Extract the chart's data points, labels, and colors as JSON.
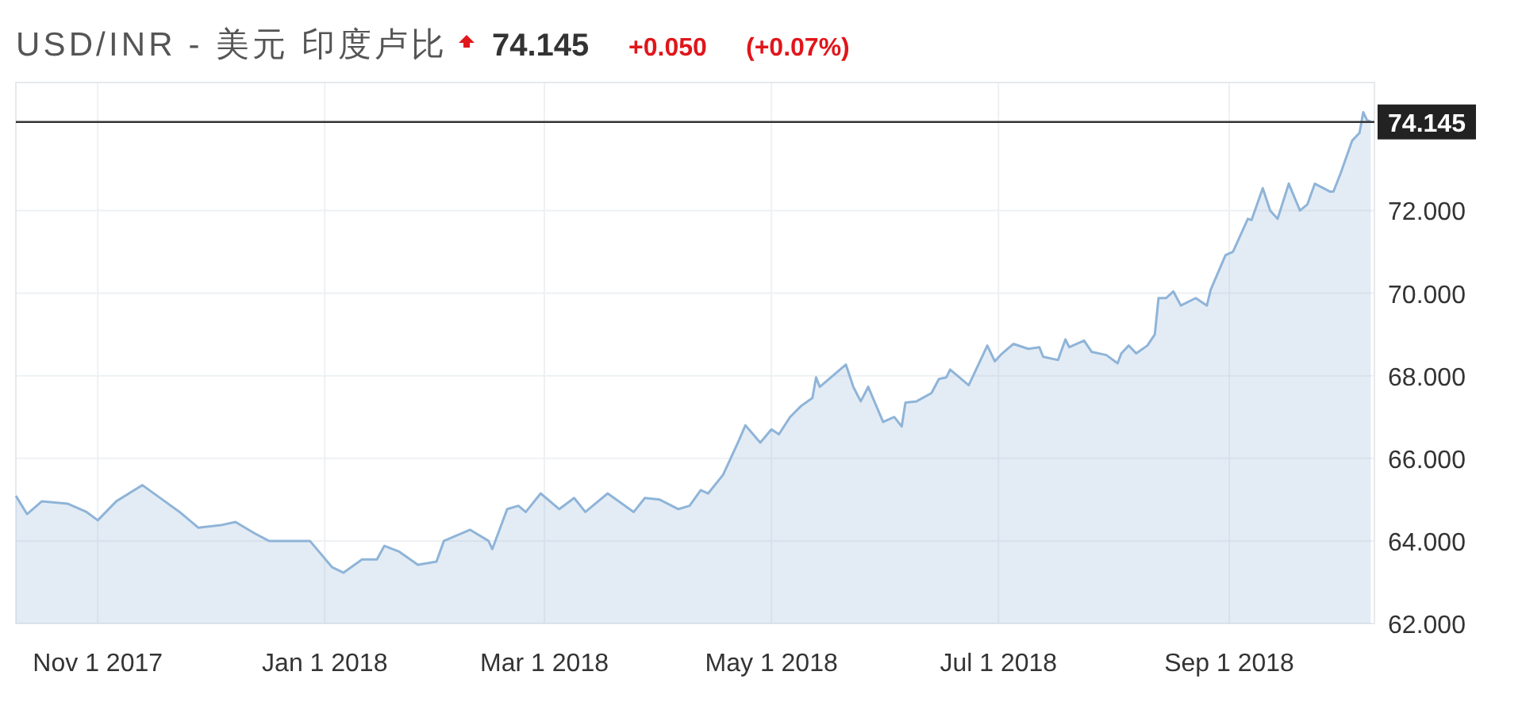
{
  "chart_data": {
    "type": "area",
    "title": "USD/INR - 美元 印度卢比",
    "annotations": [
      "74.145",
      "+0.050",
      "(+0.07%)"
    ],
    "xlim": [
      "2017-10-10",
      "2018-10-10"
    ],
    "xticks": [
      {
        "value": "2017-11-01",
        "label": "Nov 1 2017"
      },
      {
        "value": "2018-01-01",
        "label": "Jan 1 2018"
      },
      {
        "value": "2018-03-01",
        "label": "Mar 1 2018"
      },
      {
        "value": "2018-05-01",
        "label": "May 1 2018"
      },
      {
        "value": "2018-07-01",
        "label": "Jul 1 2018"
      },
      {
        "value": "2018-09-01",
        "label": "Sep 1 2018"
      }
    ],
    "ylim": [
      62,
      75.1
    ],
    "yticks": [
      {
        "value": 62,
        "label": "62.000"
      },
      {
        "value": 64,
        "label": "64.000"
      },
      {
        "value": 66,
        "label": "66.000"
      },
      {
        "value": 68,
        "label": "68.000"
      },
      {
        "value": 70,
        "label": "70.000"
      },
      {
        "value": 72,
        "label": "72.000"
      }
    ],
    "grid": true,
    "ref_lines": [
      {
        "axis": "y",
        "value": 74.145,
        "label": "74.145",
        "color": "#333333"
      }
    ],
    "x": [
      "2017-10-10",
      "2017-10-13",
      "2017-10-17",
      "2017-10-24",
      "2017-10-29",
      "2017-11-01",
      "2017-11-06",
      "2017-11-13",
      "2017-11-17",
      "2017-11-23",
      "2017-11-28",
      "2017-12-04",
      "2017-12-08",
      "2017-12-13",
      "2017-12-17",
      "2017-12-22",
      "2017-12-28",
      "2018-01-03",
      "2018-01-06",
      "2018-01-11",
      "2018-01-15",
      "2018-01-17",
      "2018-01-21",
      "2018-01-26",
      "2018-01-31",
      "2018-02-02",
      "2018-02-09",
      "2018-02-14",
      "2018-02-15",
      "2018-02-19",
      "2018-02-22",
      "2018-02-24",
      "2018-02-28",
      "2018-03-05",
      "2018-03-09",
      "2018-03-12",
      "2018-03-18",
      "2018-03-25",
      "2018-03-28",
      "2018-04-01",
      "2018-04-06",
      "2018-04-09",
      "2018-04-12",
      "2018-04-14",
      "2018-04-18",
      "2018-04-22",
      "2018-04-24",
      "2018-04-28",
      "2018-05-01",
      "2018-05-03",
      "2018-05-06",
      "2018-05-09",
      "2018-05-12",
      "2018-05-13",
      "2018-05-14",
      "2018-05-18",
      "2018-05-21",
      "2018-05-23",
      "2018-05-25",
      "2018-05-27",
      "2018-05-31",
      "2018-06-03",
      "2018-06-05",
      "2018-06-06",
      "2018-06-09",
      "2018-06-13",
      "2018-06-15",
      "2018-06-17",
      "2018-06-18",
      "2018-06-23",
      "2018-06-28",
      "2018-06-30",
      "2018-07-02",
      "2018-07-05",
      "2018-07-09",
      "2018-07-12",
      "2018-07-13",
      "2018-07-17",
      "2018-07-19",
      "2018-07-20",
      "2018-07-24",
      "2018-07-26",
      "2018-07-30",
      "2018-08-02",
      "2018-08-03",
      "2018-08-05",
      "2018-08-07",
      "2018-08-10",
      "2018-08-12",
      "2018-08-13",
      "2018-08-15",
      "2018-08-17",
      "2018-08-19",
      "2018-08-23",
      "2018-08-26",
      "2018-08-27",
      "2018-08-31",
      "2018-09-02",
      "2018-09-06",
      "2018-09-07",
      "2018-09-10",
      "2018-09-12",
      "2018-09-14",
      "2018-09-17",
      "2018-09-20",
      "2018-09-22",
      "2018-09-24",
      "2018-09-28",
      "2018-09-29",
      "2018-10-01",
      "2018-10-04",
      "2018-10-06",
      "2018-10-07",
      "2018-10-08",
      "2018-10-09"
    ],
    "series": [
      {
        "color": "#8fb4d8",
        "values": [
          65.09,
          64.65,
          64.96,
          64.9,
          64.7,
          64.5,
          64.96,
          65.35,
          65.09,
          64.7,
          64.32,
          64.38,
          64.46,
          64.19,
          64.0,
          64.0,
          64.0,
          63.36,
          63.23,
          63.55,
          63.55,
          63.88,
          63.74,
          63.42,
          63.5,
          64.0,
          64.27,
          64.0,
          63.8,
          64.77,
          64.85,
          64.7,
          65.15,
          64.77,
          65.04,
          64.7,
          65.15,
          64.7,
          65.04,
          65.0,
          64.77,
          64.85,
          65.23,
          65.15,
          65.6,
          66.38,
          66.8,
          66.38,
          66.7,
          66.58,
          67.0,
          67.27,
          67.46,
          67.96,
          67.73,
          68.04,
          68.27,
          67.73,
          67.38,
          67.73,
          66.88,
          67.0,
          66.77,
          67.35,
          67.38,
          67.58,
          67.92,
          67.96,
          68.15,
          67.77,
          68.73,
          68.35,
          68.54,
          68.77,
          68.65,
          68.69,
          68.46,
          68.38,
          68.88,
          68.69,
          68.85,
          68.58,
          68.5,
          68.3,
          68.54,
          68.73,
          68.54,
          68.73,
          69.0,
          69.88,
          69.88,
          70.04,
          69.7,
          69.88,
          69.7,
          70.08,
          70.92,
          71.0,
          71.8,
          71.77,
          72.54,
          72.0,
          71.8,
          72.65,
          72.0,
          72.15,
          72.65,
          72.46,
          72.46,
          72.92,
          73.69,
          73.88,
          74.38,
          74.19,
          74.15
        ]
      }
    ]
  }
}
